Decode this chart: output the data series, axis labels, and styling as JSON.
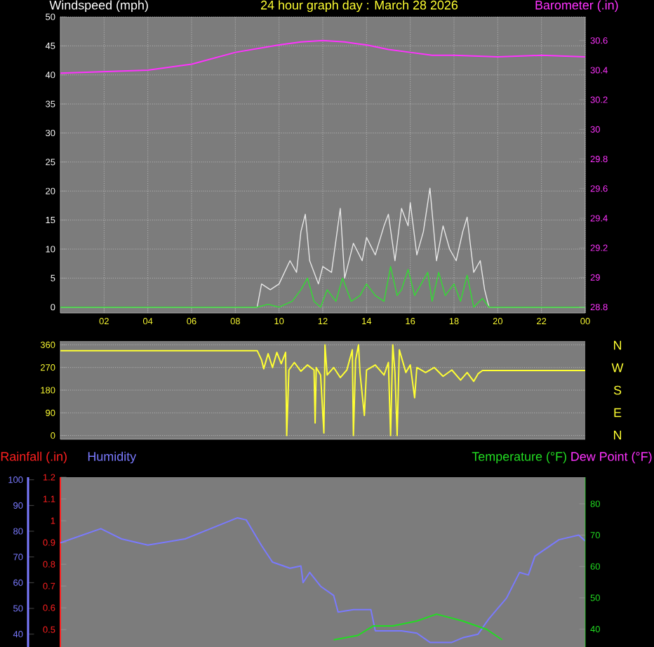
{
  "chart_data": [
    {
      "type": "line",
      "title": "24 hour graph day : March 28 2026",
      "ylabel": "Windspeed (mph)",
      "y2label": "Barometer (.in)",
      "xlim": [
        "2026-03-28T00:00",
        "2026-03-29T00:00"
      ],
      "xticks": [
        {
          "value": "2026-03-28T02:00",
          "label": "02"
        },
        {
          "value": "2026-03-28T04:00",
          "label": "04"
        },
        {
          "value": "2026-03-28T06:00",
          "label": "06"
        },
        {
          "value": "2026-03-28T08:00",
          "label": "08"
        },
        {
          "value": "2026-03-28T10:00",
          "label": "10"
        },
        {
          "value": "2026-03-28T12:00",
          "label": "12"
        },
        {
          "value": "2026-03-28T14:00",
          "label": "14"
        },
        {
          "value": "2026-03-28T16:00",
          "label": "16"
        },
        {
          "value": "2026-03-28T18:00",
          "label": "18"
        },
        {
          "value": "2026-03-28T20:00",
          "label": "20"
        },
        {
          "value": "2026-03-28T22:00",
          "label": "22"
        },
        {
          "value": "2026-03-29T00:00",
          "label": "00"
        }
      ],
      "ylim": [
        -1,
        50
      ],
      "yticks": [
        0,
        5,
        10,
        15,
        20,
        25,
        30,
        35,
        40,
        45,
        50
      ],
      "y2lim": [
        28.76,
        30.76
      ],
      "y2ticks": [
        28.8,
        29,
        29.2,
        29.4,
        29.6,
        29.8,
        30,
        30.2,
        30.4,
        30.6
      ],
      "grid": true,
      "marker": "none",
      "series": [
        {
          "color": "#e8e8e8",
          "x": [
            "2026-03-28T00:00",
            "2026-03-28T09:00",
            "2026-03-28T09:12",
            "2026-03-28T09:36",
            "2026-03-28T10:00",
            "2026-03-28T10:30",
            "2026-03-28T10:48",
            "2026-03-28T11:00",
            "2026-03-28T11:12",
            "2026-03-28T11:24",
            "2026-03-28T11:48",
            "2026-03-28T12:00",
            "2026-03-28T12:24",
            "2026-03-28T12:48",
            "2026-03-28T13:00",
            "2026-03-28T13:24",
            "2026-03-28T13:48",
            "2026-03-28T14:00",
            "2026-03-28T14:24",
            "2026-03-28T14:48",
            "2026-03-28T15:00",
            "2026-03-28T15:18",
            "2026-03-28T15:36",
            "2026-03-28T15:54",
            "2026-03-28T16:00",
            "2026-03-28T16:18",
            "2026-03-28T16:36",
            "2026-03-28T16:54",
            "2026-03-28T17:12",
            "2026-03-28T17:30",
            "2026-03-28T17:48",
            "2026-03-28T18:06",
            "2026-03-28T18:24",
            "2026-03-28T18:36",
            "2026-03-28T18:54",
            "2026-03-28T19:12",
            "2026-03-28T19:24",
            "2026-03-28T19:36",
            "2026-03-29T00:00"
          ],
          "values": [
            0,
            0,
            4,
            3,
            4,
            8,
            6,
            13,
            16,
            8,
            4,
            7,
            6,
            17,
            5,
            11,
            8,
            12,
            9,
            14,
            16,
            8,
            17,
            14,
            18,
            9,
            13,
            20.5,
            8,
            14,
            10,
            8,
            13,
            15.5,
            6,
            8,
            3,
            0,
            0
          ]
        },
        {
          "color": "#33dd33",
          "x": [
            "2026-03-28T00:00",
            "2026-03-28T09:00",
            "2026-03-28T09:30",
            "2026-03-28T10:00",
            "2026-03-28T10:36",
            "2026-03-28T11:00",
            "2026-03-28T11:18",
            "2026-03-28T11:36",
            "2026-03-28T11:54",
            "2026-03-28T12:12",
            "2026-03-28T12:36",
            "2026-03-28T12:54",
            "2026-03-28T13:18",
            "2026-03-28T13:42",
            "2026-03-28T14:00",
            "2026-03-28T14:24",
            "2026-03-28T14:48",
            "2026-03-28T15:06",
            "2026-03-28T15:24",
            "2026-03-28T15:36",
            "2026-03-28T15:54",
            "2026-03-28T16:12",
            "2026-03-28T16:30",
            "2026-03-28T16:48",
            "2026-03-28T17:00",
            "2026-03-28T17:18",
            "2026-03-28T17:36",
            "2026-03-28T18:00",
            "2026-03-28T18:18",
            "2026-03-28T18:36",
            "2026-03-28T18:54",
            "2026-03-28T19:18",
            "2026-03-28T19:36",
            "2026-03-29T00:00"
          ],
          "values": [
            0,
            0,
            0.5,
            0,
            1,
            3,
            5,
            1,
            0,
            3,
            1,
            5,
            1,
            2,
            4,
            2,
            1,
            7,
            2,
            3,
            6.5,
            2,
            4,
            6,
            1,
            6,
            2,
            4,
            1,
            5.5,
            0,
            1.5,
            0,
            0
          ]
        },
        {
          "color": "#ff33ff",
          "axis": "y2",
          "x": [
            "2026-03-28T00:00",
            "2026-03-28T02:00",
            "2026-03-28T04:00",
            "2026-03-28T06:00",
            "2026-03-28T08:00",
            "2026-03-28T10:00",
            "2026-03-28T11:00",
            "2026-03-28T12:00",
            "2026-03-28T13:00",
            "2026-03-28T14:00",
            "2026-03-28T15:00",
            "2026-03-28T16:00",
            "2026-03-28T17:00",
            "2026-03-28T18:00",
            "2026-03-28T20:00",
            "2026-03-28T22:00",
            "2026-03-29T00:00"
          ],
          "values": [
            30.38,
            30.39,
            30.4,
            30.44,
            30.52,
            30.57,
            30.59,
            30.6,
            30.59,
            30.57,
            30.54,
            30.52,
            30.5,
            30.5,
            30.49,
            30.5,
            30.49
          ]
        }
      ]
    },
    {
      "type": "line",
      "xlim": [
        "2026-03-28T00:00",
        "2026-03-29T00:00"
      ],
      "ylim": [
        -15,
        375
      ],
      "yticks": [
        0,
        90,
        180,
        270,
        360
      ],
      "annotations": [
        "N",
        "W",
        "S",
        "E",
        "N"
      ],
      "tick_labels": "y",
      "grid": "y",
      "marker": "none",
      "series": [
        {
          "color": "#ffff33",
          "x": [
            "2026-03-28T00:00",
            "2026-03-28T09:00",
            "2026-03-28T09:12",
            "2026-03-28T09:18",
            "2026-03-28T09:30",
            "2026-03-28T09:42",
            "2026-03-28T09:54",
            "2026-03-28T10:06",
            "2026-03-28T10:18",
            "2026-03-28T10:21",
            "2026-03-28T10:27",
            "2026-03-28T10:42",
            "2026-03-28T11:00",
            "2026-03-28T11:18",
            "2026-03-28T11:36",
            "2026-03-28T11:39",
            "2026-03-28T11:42",
            "2026-03-28T11:54",
            "2026-03-28T12:03",
            "2026-03-28T12:06",
            "2026-03-28T12:12",
            "2026-03-28T12:30",
            "2026-03-28T12:48",
            "2026-03-28T13:06",
            "2026-03-28T13:21",
            "2026-03-28T13:24",
            "2026-03-28T13:30",
            "2026-03-28T13:38",
            "2026-03-28T13:42",
            "2026-03-28T13:54",
            "2026-03-28T14:00",
            "2026-03-28T14:24",
            "2026-03-28T14:48",
            "2026-03-28T15:00",
            "2026-03-28T15:06",
            "2026-03-28T15:12",
            "2026-03-28T15:18",
            "2026-03-28T15:24",
            "2026-03-28T15:30",
            "2026-03-28T15:48",
            "2026-03-28T16:00",
            "2026-03-28T16:12",
            "2026-03-28T16:18",
            "2026-03-28T16:42",
            "2026-03-28T17:06",
            "2026-03-28T17:30",
            "2026-03-28T17:54",
            "2026-03-28T18:18",
            "2026-03-28T18:36",
            "2026-03-28T18:54",
            "2026-03-28T19:06",
            "2026-03-28T19:18",
            "2026-03-29T00:00"
          ],
          "values": [
            337,
            337,
            300,
            265,
            325,
            270,
            330,
            285,
            330,
            0,
            260,
            290,
            255,
            280,
            260,
            50,
            270,
            240,
            10,
            360,
            240,
            270,
            230,
            260,
            340,
            0,
            300,
            360,
            250,
            80,
            260,
            280,
            240,
            290,
            0,
            360,
            250,
            0,
            340,
            250,
            280,
            150,
            270,
            250,
            270,
            235,
            260,
            220,
            250,
            215,
            245,
            258,
            258
          ]
        }
      ]
    },
    {
      "type": "line",
      "ylabel": "Humidity",
      "y2label": "Temperature (°F)",
      "y3label": "Rainfall (.in)",
      "annotations": [
        "Dew Point (°F)"
      ],
      "xlim": [
        "2026-03-28T00:00",
        "2026-03-29T00:00"
      ],
      "xticks": [
        {
          "value": "2026-03-28T02:00",
          "label": null
        },
        {
          "value": "2026-03-28T04:00",
          "label": null
        },
        {
          "value": "2026-03-28T06:00",
          "label": null
        },
        {
          "value": "2026-03-28T08:00",
          "label": null
        },
        {
          "value": "2026-03-28T10:00",
          "label": null
        },
        {
          "value": "2026-03-28T12:00",
          "label": null
        },
        {
          "value": "2026-03-28T14:00",
          "label": null
        },
        {
          "value": "2026-03-28T16:00",
          "label": null
        },
        {
          "value": "2026-03-28T18:00",
          "label": null
        },
        {
          "value": "2026-03-28T20:00",
          "label": null
        },
        {
          "value": "2026-03-28T22:00",
          "label": null
        }
      ],
      "ylim": [
        35,
        101
      ],
      "yticks": [
        40,
        50,
        60,
        70,
        80,
        90,
        100
      ],
      "y2lim": [
        34.3,
        88.5
      ],
      "y2ticks": [
        40,
        50,
        60,
        70,
        80
      ],
      "y3lim": [
        0.42,
        1.2
      ],
      "y3ticks": [
        0.5,
        0.6,
        0.7,
        0.8,
        0.9,
        1,
        1.1,
        1.2
      ],
      "tick_labels": "y",
      "grid": "x",
      "marker": "none",
      "series": [
        {
          "color": "#7a7aff",
          "x": [
            "2026-03-28T00:00",
            "2026-03-28T01:51",
            "2026-03-28T02:48",
            "2026-03-28T04:00",
            "2026-03-28T05:42",
            "2026-03-28T08:06",
            "2026-03-28T08:30",
            "2026-03-28T09:12",
            "2026-03-28T09:42",
            "2026-03-28T10:30",
            "2026-03-28T11:00",
            "2026-03-28T11:06",
            "2026-03-28T11:24",
            "2026-03-28T11:54",
            "2026-03-28T12:30",
            "2026-03-28T12:42",
            "2026-03-28T13:24",
            "2026-03-28T14:12",
            "2026-03-28T14:24",
            "2026-03-28T15:36",
            "2026-03-28T16:18",
            "2026-03-28T16:54",
            "2026-03-28T17:54",
            "2026-03-28T18:24",
            "2026-03-28T19:06",
            "2026-03-28T19:36",
            "2026-03-28T20:24",
            "2026-03-28T21:00",
            "2026-03-28T21:24",
            "2026-03-28T21:42",
            "2026-03-28T22:48",
            "2026-03-28T23:42",
            "2026-03-29T00:00"
          ],
          "values": [
            75.5,
            81,
            77,
            74.6,
            77,
            85.2,
            84.4,
            74.4,
            68,
            65.6,
            66.5,
            60,
            64,
            58.6,
            55,
            48.6,
            49.5,
            49.5,
            41.3,
            41.3,
            40.4,
            36.8,
            36.8,
            38.6,
            40,
            46,
            54,
            64,
            63,
            70.3,
            76.7,
            78.5,
            76.2
          ]
        },
        {
          "color": "#22dd22",
          "axis": "y2",
          "x": [
            "2026-03-28T12:30",
            "2026-03-28T13:36",
            "2026-03-28T14:18",
            "2026-03-28T15:12",
            "2026-03-28T16:18",
            "2026-03-28T17:12",
            "2026-03-28T18:24",
            "2026-03-28T19:30",
            "2026-03-28T20:12"
          ],
          "values": [
            36.6,
            38,
            41,
            41,
            42.6,
            44.8,
            42.6,
            39.9,
            36.6
          ]
        }
      ]
    }
  ]
}
